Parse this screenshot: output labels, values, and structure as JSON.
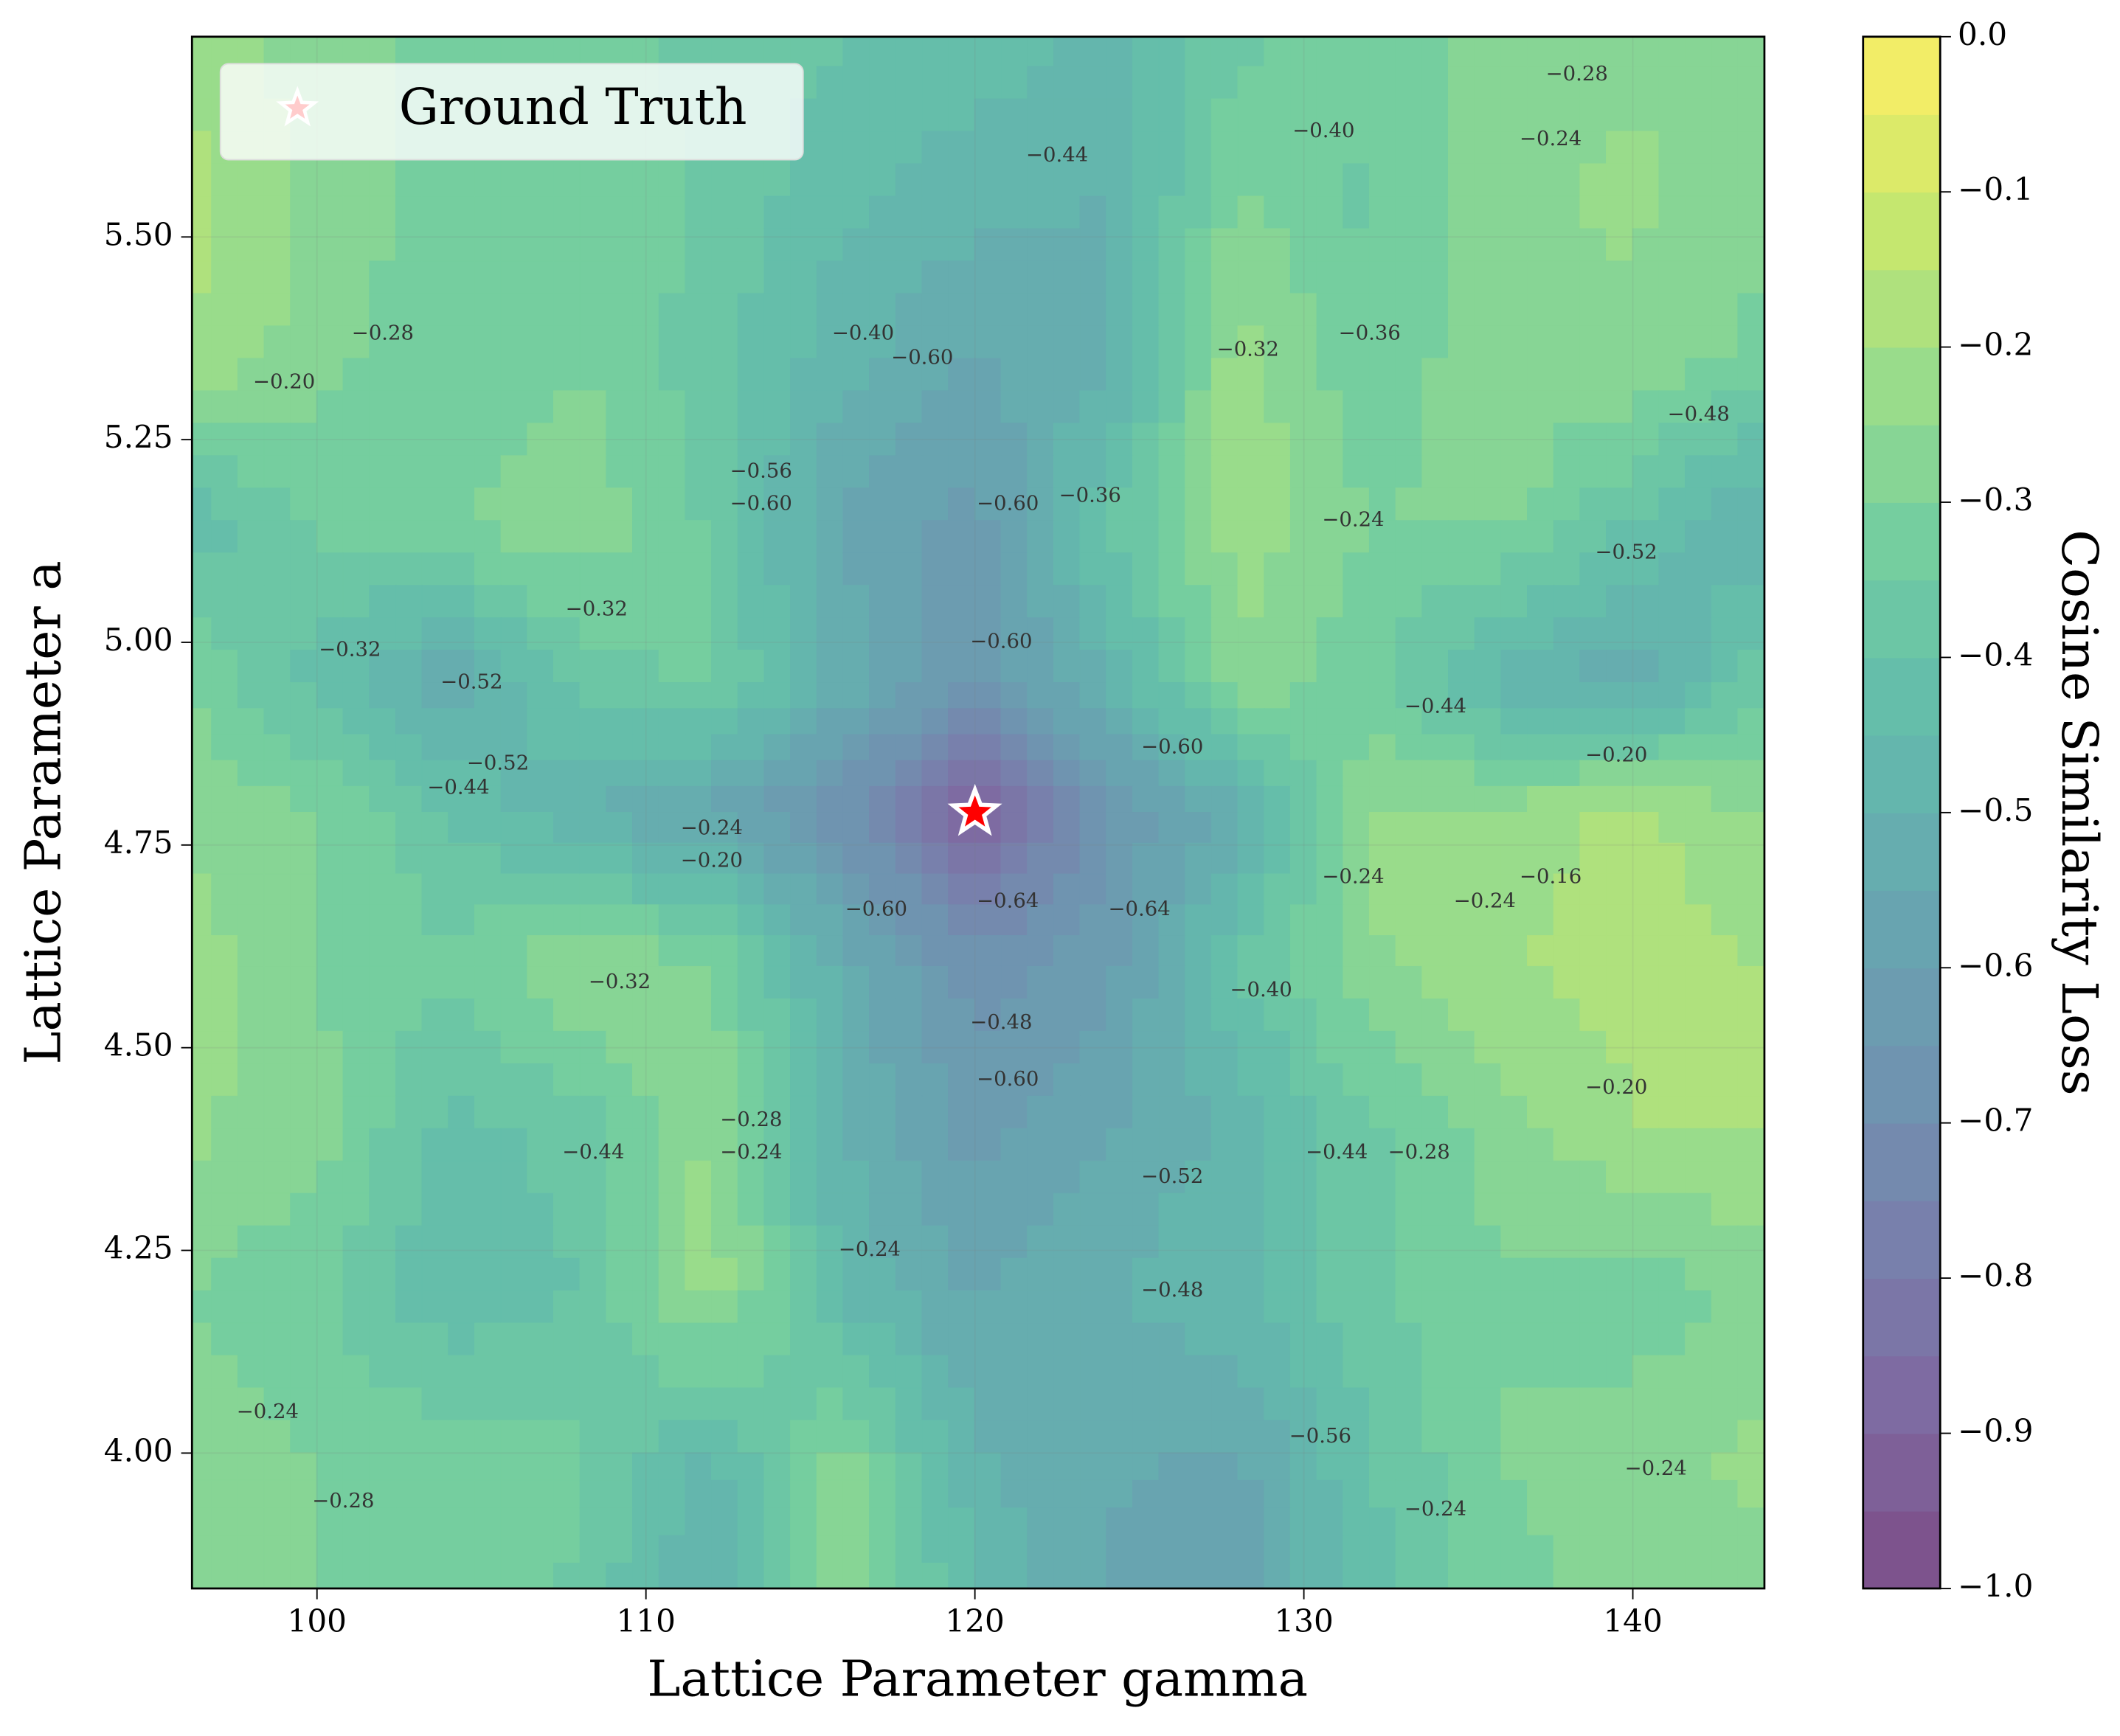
{
  "chart_data": {
    "type": "contour",
    "xlabel": "Lattice Parameter gamma",
    "ylabel": "Lattice Parameter a",
    "xlim": [
      96.2,
      144
    ],
    "ylim": [
      3.833,
      5.747
    ],
    "xticks": [
      100,
      110,
      120,
      130,
      140
    ],
    "yticks": [
      {
        "value": 4,
        "label": "4.00"
      },
      4.25,
      {
        "value": 4.5,
        "label": "4.50"
      },
      4.75,
      {
        "value": 5,
        "label": "5.00"
      },
      5.25,
      {
        "value": 5.5,
        "label": "5.50"
      }
    ],
    "colormap": "viridis",
    "alpha": 0.7,
    "x": [
      96,
      100,
      104,
      108,
      112,
      116,
      120,
      124,
      128,
      132,
      136,
      140,
      144
    ],
    "y": [
      5.75,
      5.55,
      5.35,
      5.15,
      4.95,
      4.79,
      4.6,
      4.4,
      4.2,
      4.0,
      3.83
    ],
    "z": [
      [
        -0.22,
        -0.28,
        -0.32,
        -0.34,
        -0.36,
        -0.4,
        -0.42,
        -0.46,
        -0.36,
        -0.32,
        -0.28,
        -0.26,
        -0.26
      ],
      [
        -0.18,
        -0.26,
        -0.32,
        -0.3,
        -0.36,
        -0.44,
        -0.48,
        -0.5,
        -0.3,
        -0.36,
        -0.26,
        -0.24,
        -0.28
      ],
      [
        -0.2,
        -0.28,
        -0.34,
        -0.3,
        -0.38,
        -0.48,
        -0.56,
        -0.52,
        -0.22,
        -0.34,
        -0.26,
        -0.26,
        -0.32
      ],
      [
        -0.44,
        -0.34,
        -0.3,
        -0.26,
        -0.36,
        -0.56,
        -0.62,
        -0.4,
        -0.22,
        -0.3,
        -0.28,
        -0.4,
        -0.52
      ],
      [
        -0.3,
        -0.42,
        -0.54,
        -0.38,
        -0.34,
        -0.52,
        -0.64,
        -0.5,
        -0.26,
        -0.34,
        -0.48,
        -0.54,
        -0.36
      ],
      [
        -0.26,
        -0.3,
        -0.4,
        -0.5,
        -0.56,
        -0.68,
        -0.9,
        -0.66,
        -0.52,
        -0.24,
        -0.24,
        -0.18,
        -0.26
      ],
      [
        -0.22,
        -0.3,
        -0.34,
        -0.24,
        -0.3,
        -0.52,
        -0.68,
        -0.62,
        -0.4,
        -0.26,
        -0.2,
        -0.18,
        -0.2
      ],
      [
        -0.24,
        -0.28,
        -0.42,
        -0.38,
        -0.24,
        -0.5,
        -0.62,
        -0.56,
        -0.48,
        -0.36,
        -0.28,
        -0.2,
        -0.2
      ],
      [
        -0.3,
        -0.34,
        -0.44,
        -0.4,
        -0.22,
        -0.46,
        -0.56,
        -0.5,
        -0.46,
        -0.36,
        -0.3,
        -0.34,
        -0.28
      ],
      [
        -0.26,
        -0.3,
        -0.32,
        -0.34,
        -0.46,
        -0.28,
        -0.5,
        -0.54,
        -0.56,
        -0.4,
        -0.3,
        -0.26,
        -0.24
      ],
      [
        -0.28,
        -0.3,
        -0.3,
        -0.36,
        -0.52,
        -0.26,
        -0.44,
        -0.56,
        -0.58,
        -0.42,
        -0.32,
        -0.28,
        -0.26
      ]
    ],
    "contour_labels": [
      {
        "x": 118.4,
        "y": 5.35,
        "value": -0.6,
        "label": "−0.60"
      },
      {
        "x": 116.6,
        "y": 5.38,
        "value": -0.4,
        "label": "−0.40"
      },
      {
        "x": 113.5,
        "y": 5.21,
        "value": -0.56,
        "label": "−0.56"
      },
      {
        "x": 113.5,
        "y": 5.17,
        "value": -0.6,
        "label": "−0.60"
      },
      {
        "x": 121,
        "y": 5.17,
        "value": -0.6,
        "label": "−0.60"
      },
      {
        "x": 123.5,
        "y": 5.18,
        "value": -0.36,
        "label": "−0.36"
      },
      {
        "x": 108.5,
        "y": 5.04,
        "value": -0.32,
        "label": "−0.32"
      },
      {
        "x": 104.7,
        "y": 4.95,
        "value": -0.52,
        "label": "−0.52"
      },
      {
        "x": 105.5,
        "y": 4.85,
        "value": -0.52,
        "label": "−0.52"
      },
      {
        "x": 101,
        "y": 4.99,
        "value": -0.32,
        "label": "−0.32"
      },
      {
        "x": 104.3,
        "y": 4.82,
        "value": -0.44,
        "label": "−0.44"
      },
      {
        "x": 120.8,
        "y": 5.0,
        "value": -0.6,
        "label": "−0.60"
      },
      {
        "x": 126,
        "y": 4.87,
        "value": -0.6,
        "label": "−0.60"
      },
      {
        "x": 121,
        "y": 4.68,
        "value": -0.64,
        "label": "−0.64"
      },
      {
        "x": 125,
        "y": 4.67,
        "value": -0.64,
        "label": "−0.64"
      },
      {
        "x": 117,
        "y": 4.67,
        "value": -0.6,
        "label": "−0.60"
      },
      {
        "x": 120.8,
        "y": 4.53,
        "value": -0.48,
        "label": "−0.48"
      },
      {
        "x": 121,
        "y": 4.46,
        "value": -0.6,
        "label": "−0.60"
      },
      {
        "x": 113.2,
        "y": 4.41,
        "value": -0.28,
        "label": "−0.28"
      },
      {
        "x": 113.2,
        "y": 4.37,
        "value": -0.24,
        "label": "−0.24"
      },
      {
        "x": 108.4,
        "y": 4.37,
        "value": -0.44,
        "label": "−0.44"
      },
      {
        "x": 116.8,
        "y": 4.25,
        "value": -0.24,
        "label": "−0.24"
      },
      {
        "x": 126,
        "y": 4.34,
        "value": -0.52,
        "label": "−0.52"
      },
      {
        "x": 126,
        "y": 4.2,
        "value": -0.48,
        "label": "−0.48"
      },
      {
        "x": 131,
        "y": 4.37,
        "value": -0.44,
        "label": "−0.44"
      },
      {
        "x": 133.5,
        "y": 4.37,
        "value": -0.28,
        "label": "−0.28"
      },
      {
        "x": 139.5,
        "y": 4.45,
        "value": -0.2,
        "label": "−0.20"
      },
      {
        "x": 135.5,
        "y": 4.68,
        "value": -0.24,
        "label": "−0.24"
      },
      {
        "x": 137.5,
        "y": 4.71,
        "value": -0.16,
        "label": "−0.16"
      },
      {
        "x": 139.5,
        "y": 4.86,
        "value": -0.2,
        "label": "−0.20"
      },
      {
        "x": 131.5,
        "y": 4.71,
        "value": -0.24,
        "label": "−0.24"
      },
      {
        "x": 131.5,
        "y": 5.15,
        "value": -0.24,
        "label": "−0.24"
      },
      {
        "x": 138.3,
        "y": 5.7,
        "value": -0.28,
        "label": "−0.28"
      },
      {
        "x": 130.6,
        "y": 5.63,
        "value": -0.4,
        "label": "−0.40"
      },
      {
        "x": 137.5,
        "y": 5.62,
        "value": -0.24,
        "label": "−0.24"
      },
      {
        "x": 142,
        "y": 5.28,
        "value": -0.48,
        "label": "−0.48"
      },
      {
        "x": 139.8,
        "y": 5.11,
        "value": -0.52,
        "label": "−0.52"
      },
      {
        "x": 134,
        "y": 4.92,
        "value": -0.44,
        "label": "−0.44"
      },
      {
        "x": 122.5,
        "y": 5.6,
        "value": -0.44,
        "label": "−0.44"
      },
      {
        "x": 98.5,
        "y": 4.05,
        "value": -0.24,
        "label": "−0.24"
      },
      {
        "x": 100.8,
        "y": 3.94,
        "value": -0.28,
        "label": "−0.28"
      },
      {
        "x": 140.7,
        "y": 3.98,
        "value": -0.24,
        "label": "−0.24"
      },
      {
        "x": 134,
        "y": 3.93,
        "value": -0.24,
        "label": "−0.24"
      },
      {
        "x": 102,
        "y": 5.38,
        "value": -0.28,
        "label": "−0.28"
      },
      {
        "x": 99,
        "y": 5.32,
        "value": -0.2,
        "label": "−0.20"
      },
      {
        "x": 128.3,
        "y": 5.36,
        "value": -0.32,
        "label": "−0.32"
      },
      {
        "x": 132,
        "y": 5.38,
        "value": -0.36,
        "label": "−0.36"
      },
      {
        "x": 128.7,
        "y": 4.57,
        "value": -0.4,
        "label": "−0.40"
      },
      {
        "x": 109.2,
        "y": 4.58,
        "value": -0.32,
        "label": "−0.32"
      },
      {
        "x": 112,
        "y": 4.77,
        "value": -0.24,
        "label": "−0.24"
      },
      {
        "x": 112,
        "y": 4.73,
        "value": -0.2,
        "label": "−0.20"
      },
      {
        "x": 130.5,
        "y": 4.02,
        "value": -0.56,
        "label": "−0.56"
      }
    ],
    "ground_truth": {
      "name": "Ground Truth",
      "x": 120,
      "y": 4.79,
      "color": "#ff0000"
    },
    "colorbar": {
      "label": "Cosine Similarity Loss",
      "lim": [
        -1,
        0
      ],
      "ticks": [
        {
          "value": 0,
          "label": "0.0"
        },
        {
          "value": -0.1,
          "label": "−0.1"
        },
        {
          "value": -0.2,
          "label": "−0.2"
        },
        {
          "value": -0.3,
          "label": "−0.3"
        },
        {
          "value": -0.4,
          "label": "−0.4"
        },
        {
          "value": -0.5,
          "label": "−0.5"
        },
        {
          "value": -0.6,
          "label": "−0.6"
        },
        {
          "value": -0.7,
          "label": "−0.7"
        },
        {
          "value": -0.8,
          "label": "−0.8"
        },
        {
          "value": -0.9,
          "label": "−0.9"
        },
        {
          "value": -1,
          "label": "−1.0"
        }
      ]
    }
  }
}
